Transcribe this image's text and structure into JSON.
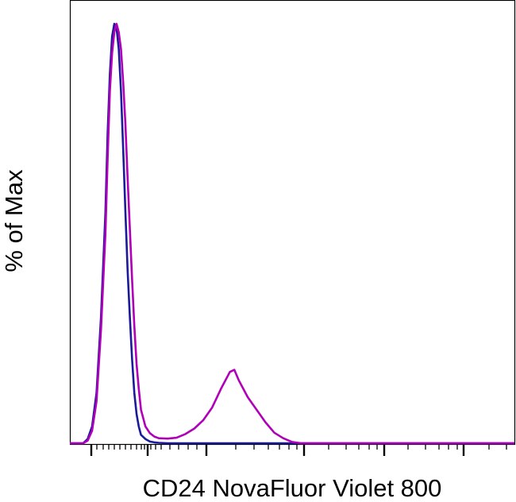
{
  "chart_data": {
    "type": "line",
    "title": "",
    "xlabel": "CD24 NovaFluor Violet 800",
    "ylabel": "% of Max",
    "x_scale": "log-like (biexponential), no tick labels",
    "tick_labels_shown": false,
    "grid": false,
    "legend": "none",
    "ylim": [
      0,
      100
    ],
    "series": [
      {
        "color": "#1a1a9a",
        "note": "control (unstained) histogram",
        "points": [
          [
            0,
            0
          ],
          [
            3,
            0
          ],
          [
            4,
            1
          ],
          [
            5,
            4
          ],
          [
            6,
            12
          ],
          [
            7,
            30
          ],
          [
            8,
            55
          ],
          [
            8.5,
            74
          ],
          [
            9,
            88
          ],
          [
            9.5,
            97
          ],
          [
            10,
            100
          ],
          [
            10.5,
            99
          ],
          [
            11,
            94
          ],
          [
            11.5,
            84
          ],
          [
            12,
            70
          ],
          [
            12.5,
            55
          ],
          [
            13,
            41
          ],
          [
            13.5,
            30
          ],
          [
            14,
            20
          ],
          [
            14.5,
            12
          ],
          [
            15,
            7
          ],
          [
            15.5,
            4
          ],
          [
            16,
            2
          ],
          [
            17,
            1
          ],
          [
            18,
            0.4
          ],
          [
            19,
            0.2
          ],
          [
            20,
            0.1
          ],
          [
            22,
            0
          ],
          [
            30,
            0
          ],
          [
            40,
            0
          ],
          [
            50,
            0
          ],
          [
            60,
            0
          ],
          [
            70,
            0
          ],
          [
            80,
            0
          ],
          [
            100,
            0
          ]
        ]
      },
      {
        "color": "#b000b8",
        "note": "CD24 stained histogram",
        "points": [
          [
            0,
            0
          ],
          [
            3,
            0
          ],
          [
            4,
            0.6
          ],
          [
            5,
            3
          ],
          [
            6,
            10
          ],
          [
            7,
            27
          ],
          [
            8,
            50
          ],
          [
            8.5,
            68
          ],
          [
            9,
            84
          ],
          [
            9.5,
            93
          ],
          [
            10,
            98
          ],
          [
            10.5,
            100
          ],
          [
            11,
            98
          ],
          [
            11.5,
            94
          ],
          [
            12,
            86
          ],
          [
            12.5,
            76
          ],
          [
            13,
            63
          ],
          [
            13.5,
            51
          ],
          [
            14,
            39
          ],
          [
            14.5,
            28
          ],
          [
            15,
            19
          ],
          [
            15.5,
            13
          ],
          [
            16,
            8
          ],
          [
            17,
            4
          ],
          [
            18,
            2.4
          ],
          [
            19,
            1.6
          ],
          [
            20,
            1.2
          ],
          [
            22,
            1.1
          ],
          [
            24,
            1.3
          ],
          [
            26,
            2.2
          ],
          [
            28,
            3.5
          ],
          [
            30,
            5.5
          ],
          [
            32,
            8.5
          ],
          [
            34,
            13
          ],
          [
            36,
            17
          ],
          [
            37,
            17.5
          ],
          [
            38,
            15
          ],
          [
            40,
            11
          ],
          [
            42,
            8
          ],
          [
            44,
            5
          ],
          [
            46,
            2.5
          ],
          [
            48,
            1.2
          ],
          [
            50,
            0.3
          ],
          [
            52,
            0
          ],
          [
            60,
            0
          ],
          [
            80,
            0
          ],
          [
            100,
            0
          ]
        ]
      }
    ]
  }
}
